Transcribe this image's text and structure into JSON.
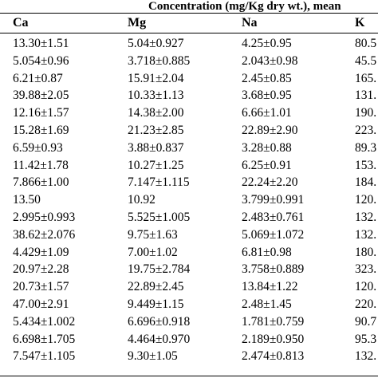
{
  "table": {
    "caption": "Concentration (mg/Kg dry wt.), mean",
    "headers": [
      "Ca",
      "Mg",
      "Na",
      "K"
    ],
    "rows": [
      [
        "13.30±1.51",
        "5.04±0.927",
        "4.25±0.95",
        "80.5"
      ],
      [
        "5.054±0.96",
        "3.718±0.885",
        "2.043±0.98",
        "45.5"
      ],
      [
        "6.21±0.87",
        "15.91±2.04",
        "2.45±0.85",
        "165."
      ],
      [
        "39.88±2.05",
        "10.33±1.13",
        "3.68±0.95",
        "131."
      ],
      [
        "12.16±1.57",
        "14.38±2.00",
        "6.66±1.01",
        "190."
      ],
      [
        "15.28±1.69",
        "21.23±2.85",
        "22.89±2.90",
        "223."
      ],
      [
        "6.59±0.93",
        "3.88±0.837",
        "3.28±0.88",
        "89.3"
      ],
      [
        "11.42±1.78",
        "10.27±1.25",
        "6.25±0.91",
        "153."
      ],
      [
        "7.866±1.00",
        "7.147±1.115",
        "22.24±2.20",
        "184."
      ],
      [
        "13.50",
        "10.92",
        "3.799±0.991",
        "120."
      ],
      [
        "2.995±0.993",
        "5.525±1.005",
        "2.483±0.761",
        "132."
      ],
      [
        "38.62±2.076",
        "9.75±1.63",
        "5.069±1.072",
        "132."
      ],
      [
        "4.429±1.09",
        "7.00±1.02",
        "6.81±0.98",
        "180."
      ],
      [
        "20.97±2.28",
        "19.75±2.784",
        "3.758±0.889",
        "323."
      ],
      [
        "20.73±1.57",
        "22.89±2.45",
        "13.84±1.22",
        "120."
      ],
      [
        "47.00±2.91",
        "9.449±1.15",
        "2.48±1.45",
        "220."
      ],
      [
        "5.434±1.002",
        "6.696±0.918",
        "1.781±0.759",
        "90.7"
      ],
      [
        "6.698±1.705",
        "4.464±0.970",
        "2.189±0.950",
        "95.3"
      ],
      [
        "7.547±1.105",
        "9.30±1.05",
        "2.474±0.813",
        "132."
      ]
    ]
  }
}
